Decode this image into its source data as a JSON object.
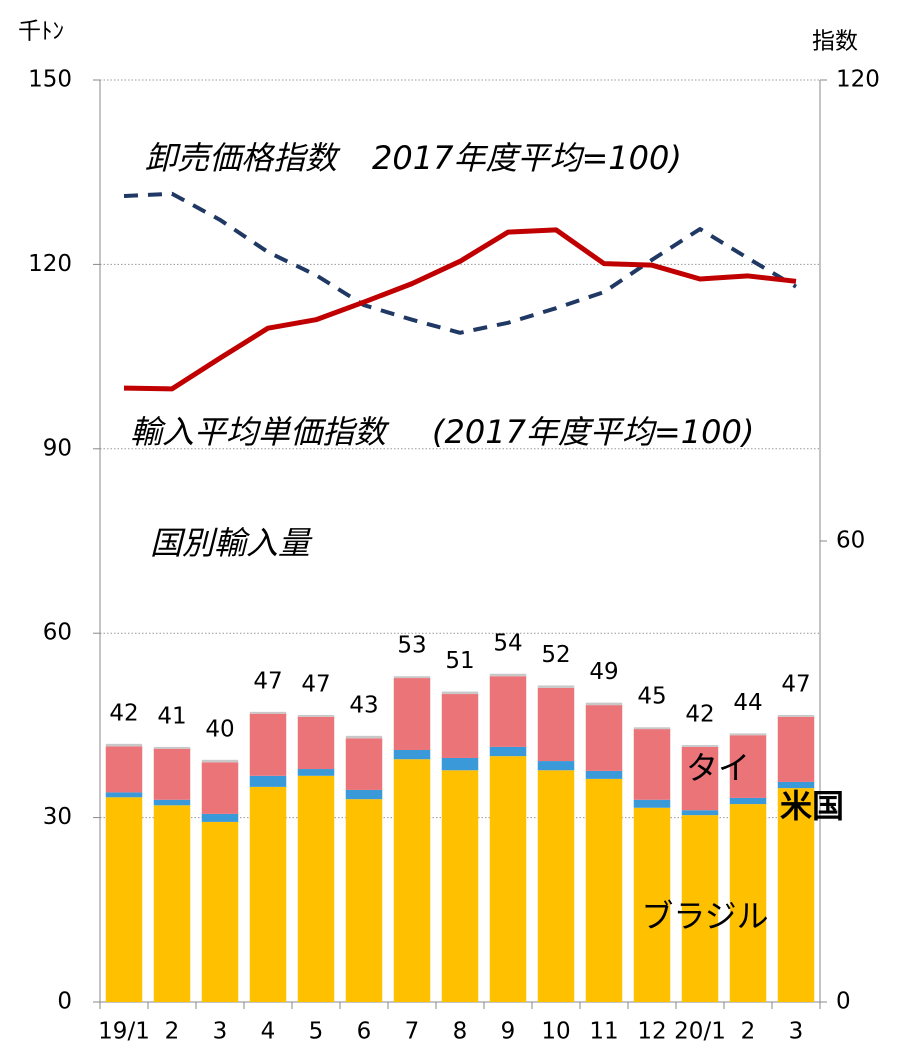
{
  "chart_data": {
    "type": "combo",
    "y_label": "千ﾄﾝ",
    "y2_label": "指数",
    "categories": [
      "19/1",
      "2",
      "3",
      "4",
      "5",
      "6",
      "7",
      "8",
      "9",
      "10",
      "11",
      "12",
      "20/1",
      "2",
      "3"
    ],
    "ylim": [
      0,
      150
    ],
    "yticks": [
      0,
      30,
      60,
      90,
      120,
      150
    ],
    "y2lim": [
      0,
      120
    ],
    "y2ticks": [
      0,
      60,
      120
    ],
    "grid": true,
    "series": [
      {
        "name": "ブラジル",
        "kind": "bar",
        "axis": "y",
        "color": "#ffc000",
        "values": [
          33.3,
          32.0,
          29.3,
          35.0,
          36.8,
          33.0,
          39.5,
          37.7,
          40.0,
          37.7,
          36.3,
          31.6,
          30.4,
          32.2,
          34.8
        ]
      },
      {
        "name": "米国",
        "kind": "bar",
        "axis": "y",
        "color": "#3a9ad9",
        "values": [
          0.8,
          0.9,
          1.3,
          1.8,
          1.1,
          1.5,
          1.5,
          2.0,
          1.5,
          1.5,
          1.3,
          1.3,
          0.8,
          1.0,
          1.0
        ]
      },
      {
        "name": "タイ",
        "kind": "bar",
        "axis": "y",
        "color": "#eb7479",
        "values": [
          7.5,
          8.3,
          8.4,
          10.1,
          8.5,
          8.4,
          11.7,
          10.4,
          11.5,
          11.9,
          10.7,
          11.5,
          10.3,
          10.2,
          10.6
        ]
      },
      {
        "kind": "bar",
        "axis": "y",
        "color": "#c8c8c8",
        "values": [
          0.4,
          0.3,
          0.4,
          0.3,
          0.3,
          0.4,
          0.3,
          0.4,
          0.4,
          0.4,
          0.4,
          0.3,
          0.3,
          0.3,
          0.3
        ]
      },
      {
        "name": "卸売価格指数",
        "kind": "line",
        "dash": true,
        "axis": "y2",
        "color": "#1f3864",
        "values": [
          104.9,
          105.2,
          101.8,
          97.6,
          94.6,
          90.7,
          88.8,
          87.1,
          88.4,
          90.3,
          92.4,
          96.6,
          100.6,
          96.8,
          93.1
        ]
      },
      {
        "name": "輸入平均単価指数",
        "kind": "line",
        "dash": false,
        "axis": "y2",
        "color": "#c00000",
        "values": [
          79.9,
          79.8,
          83.8,
          87.7,
          88.8,
          91.1,
          93.5,
          96.4,
          100.2,
          100.5,
          96.1,
          95.9,
          94.1,
          94.5,
          93.8
        ]
      }
    ],
    "total_labels": [
      42,
      41,
      40,
      47,
      47,
      43,
      53,
      51,
      54,
      52,
      49,
      45,
      42,
      44,
      47
    ],
    "annotations": [
      "2017年度平均=100)",
      "(2017年度平均=100)",
      "国別輸入量"
    ]
  }
}
